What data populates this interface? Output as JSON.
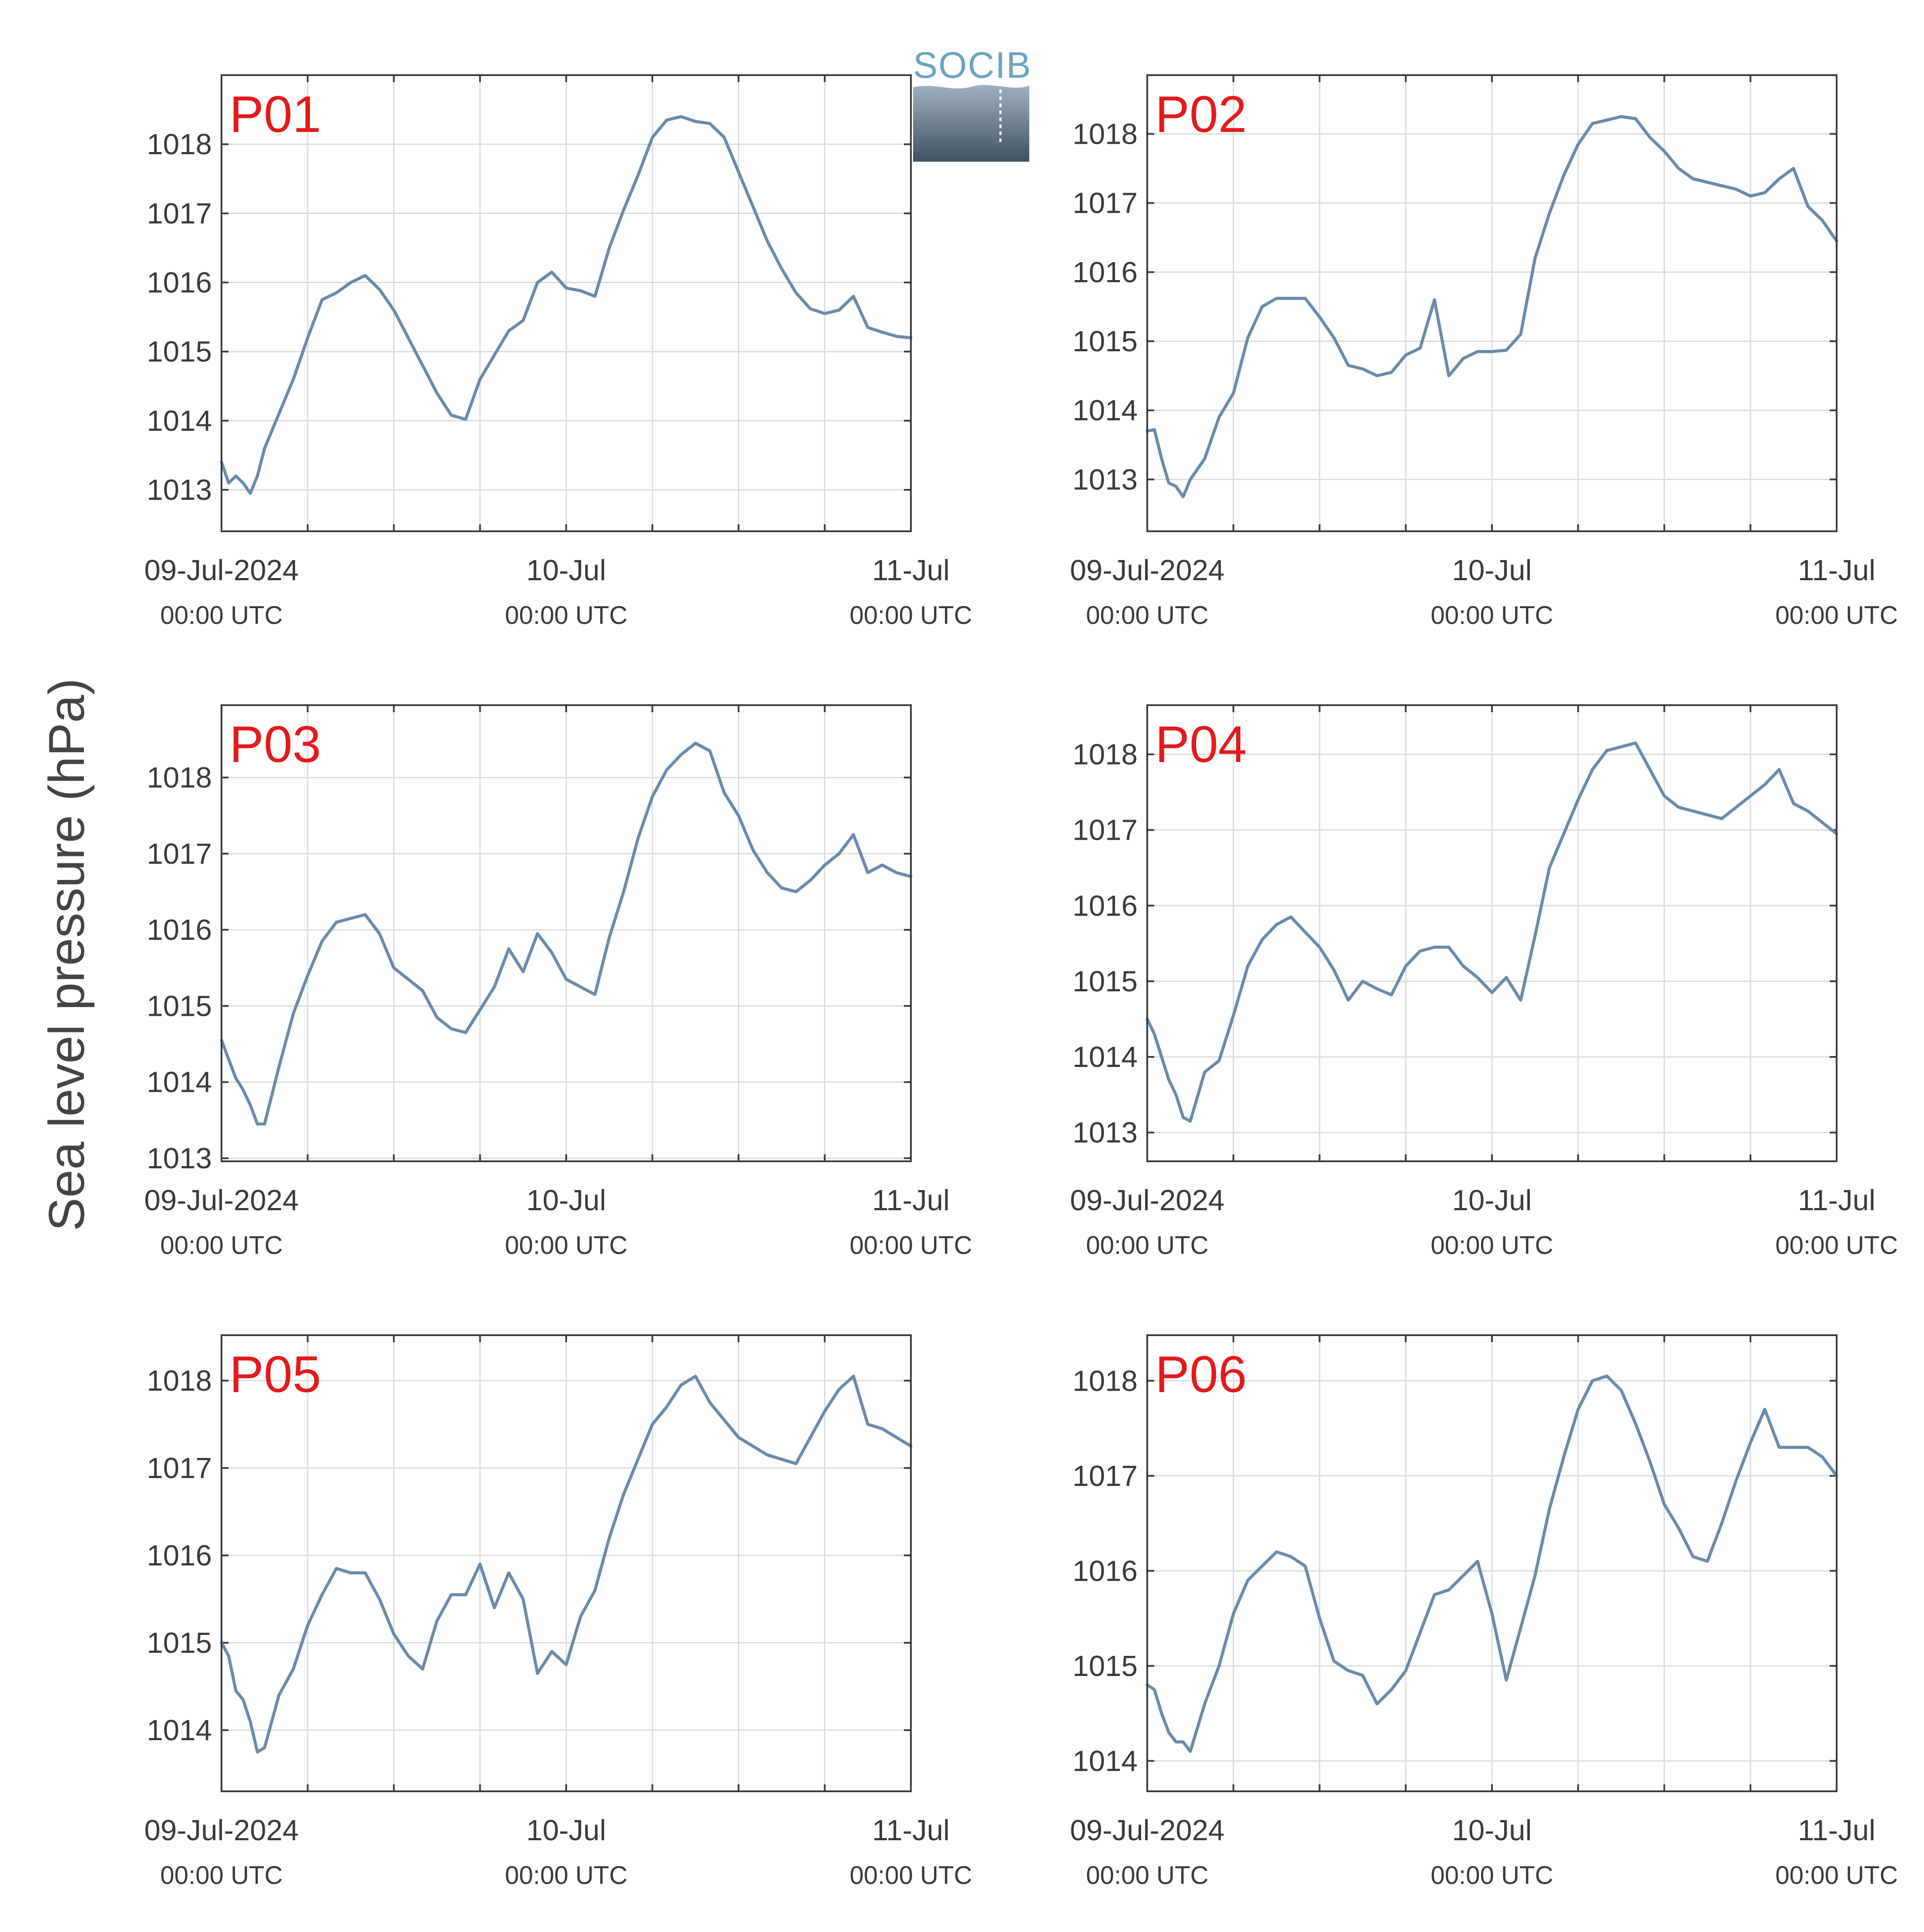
{
  "ylabel": "Sea level pressure (hPa)",
  "logo": {
    "text": "SOCIB",
    "color_top": "#9fb0c0",
    "color_bottom": "#3e5165"
  },
  "x_ticks": [
    {
      "label": "09-Jul-2024",
      "sub": "00:00 UTC"
    },
    {
      "label": "10-Jul",
      "sub": "00:00 UTC"
    },
    {
      "label": "11-Jul",
      "sub": "00:00 UTC"
    }
  ],
  "colors": {
    "series": "#6a8aaa",
    "title": "#e31a1c",
    "grid": "#dcdcdc",
    "axis": "#3a3a3a"
  },
  "chart_data": [
    {
      "type": "line",
      "title": "P01",
      "xlabel": "",
      "ylabel": "Sea level pressure (hPa)",
      "xlim": [
        0,
        48
      ],
      "ylim": [
        1012.4,
        1019.0
      ],
      "yticks": [
        1013,
        1014,
        1015,
        1016,
        1017,
        1018
      ],
      "grid": true,
      "series": [
        {
          "x": [
            0,
            0.5,
            1,
            1.5,
            2,
            2.5,
            3,
            4,
            5,
            6,
            7,
            8,
            9,
            10,
            11,
            12,
            13,
            14,
            15,
            16,
            17,
            18,
            19,
            20,
            21,
            22,
            23,
            24,
            25,
            26,
            27,
            28,
            29,
            30,
            31,
            32,
            33,
            34,
            35,
            36,
            37,
            38,
            39,
            40,
            41,
            42,
            43,
            44,
            45,
            46,
            47,
            48
          ],
          "y": [
            1013.4,
            1013.1,
            1013.2,
            1013.1,
            1012.95,
            1013.2,
            1013.6,
            1014.1,
            1014.6,
            1015.2,
            1015.75,
            1015.85,
            1016.0,
            1016.1,
            1015.9,
            1015.6,
            1015.2,
            1014.8,
            1014.4,
            1014.08,
            1014.02,
            1014.6,
            1014.95,
            1015.3,
            1015.45,
            1016.0,
            1016.15,
            1015.92,
            1015.88,
            1015.8,
            1016.5,
            1017.05,
            1017.55,
            1018.1,
            1018.35,
            1018.4,
            1018.33,
            1018.3,
            1018.1,
            1017.6,
            1017.1,
            1016.6,
            1016.2,
            1015.85,
            1015.62,
            1015.55,
            1015.6,
            1015.8,
            1015.35,
            1015.28,
            1015.22,
            1015.2
          ]
        }
      ]
    },
    {
      "type": "line",
      "title": "P02",
      "xlabel": "",
      "ylabel": "Sea level pressure (hPa)",
      "xlim": [
        0,
        48
      ],
      "ylim": [
        1012.25,
        1018.85
      ],
      "yticks": [
        1013,
        1014,
        1015,
        1016,
        1017,
        1018
      ],
      "grid": true,
      "series": [
        {
          "x": [
            0,
            0.5,
            1,
            1.5,
            2,
            2.5,
            3,
            4,
            5,
            6,
            7,
            8,
            9,
            10,
            11,
            12,
            13,
            14,
            15,
            16,
            17,
            18,
            19,
            20,
            21,
            22,
            23,
            24,
            25,
            26,
            27,
            28,
            29,
            30,
            31,
            32,
            33,
            34,
            35,
            36,
            37,
            38,
            39,
            40,
            41,
            42,
            43,
            44,
            45,
            46,
            47,
            48
          ],
          "y": [
            1013.7,
            1013.72,
            1013.3,
            1012.95,
            1012.9,
            1012.75,
            1013.0,
            1013.3,
            1013.9,
            1014.25,
            1015.05,
            1015.5,
            1015.62,
            1015.62,
            1015.62,
            1015.35,
            1015.05,
            1014.65,
            1014.6,
            1014.5,
            1014.55,
            1014.8,
            1014.9,
            1015.6,
            1014.5,
            1014.75,
            1014.85,
            1014.85,
            1014.87,
            1015.1,
            1016.2,
            1016.85,
            1017.4,
            1017.85,
            1018.15,
            1018.2,
            1018.25,
            1018.22,
            1017.95,
            1017.75,
            1017.5,
            1017.35,
            1017.3,
            1017.25,
            1017.2,
            1017.1,
            1017.15,
            1017.35,
            1017.5,
            1016.95,
            1016.75,
            1016.45
          ]
        }
      ]
    },
    {
      "type": "line",
      "title": "P03",
      "xlabel": "",
      "ylabel": "Sea level pressure (hPa)",
      "xlim": [
        0,
        48
      ],
      "ylim": [
        1012.96,
        1018.95
      ],
      "yticks": [
        1013,
        1014,
        1015,
        1016,
        1017,
        1018
      ],
      "grid": true,
      "series": [
        {
          "x": [
            0,
            0.5,
            1,
            1.5,
            2,
            2.5,
            3,
            4,
            5,
            6,
            7,
            8,
            9,
            10,
            11,
            12,
            13,
            14,
            15,
            16,
            17,
            18,
            19,
            20,
            21,
            22,
            23,
            24,
            25,
            26,
            27,
            28,
            29,
            30,
            31,
            32,
            33,
            34,
            35,
            36,
            37,
            38,
            39,
            40,
            41,
            42,
            43,
            44,
            45,
            46,
            47,
            48
          ],
          "y": [
            1014.55,
            1014.3,
            1014.05,
            1013.9,
            1013.7,
            1013.45,
            1013.45,
            1014.2,
            1014.9,
            1015.4,
            1015.85,
            1016.1,
            1016.15,
            1016.2,
            1015.95,
            1015.5,
            1015.35,
            1015.2,
            1014.85,
            1014.7,
            1014.65,
            1014.95,
            1015.25,
            1015.75,
            1015.45,
            1015.95,
            1015.7,
            1015.35,
            1015.25,
            1015.15,
            1015.9,
            1016.5,
            1017.2,
            1017.75,
            1018.1,
            1018.3,
            1018.45,
            1018.35,
            1017.8,
            1017.5,
            1017.05,
            1016.75,
            1016.55,
            1016.5,
            1016.65,
            1016.85,
            1017.0,
            1017.25,
            1016.75,
            1016.85,
            1016.75,
            1016.7
          ]
        }
      ]
    },
    {
      "type": "line",
      "title": "P04",
      "xlabel": "",
      "ylabel": "Sea level pressure (hPa)",
      "xlim": [
        0,
        48
      ],
      "ylim": [
        1012.62,
        1018.65
      ],
      "yticks": [
        1013,
        1014,
        1015,
        1016,
        1017,
        1018
      ],
      "grid": true,
      "series": [
        {
          "x": [
            0,
            0.5,
            1,
            1.5,
            2,
            2.5,
            3,
            4,
            5,
            6,
            7,
            8,
            9,
            10,
            11,
            12,
            13,
            14,
            15,
            16,
            17,
            18,
            19,
            20,
            21,
            22,
            23,
            24,
            25,
            26,
            27,
            28,
            29,
            30,
            31,
            32,
            33,
            34,
            35,
            36,
            37,
            38,
            39,
            40,
            41,
            42,
            43,
            44,
            45,
            46,
            47,
            48
          ],
          "y": [
            1014.5,
            1014.3,
            1014.0,
            1013.7,
            1013.5,
            1013.2,
            1013.15,
            1013.8,
            1013.95,
            1014.55,
            1015.2,
            1015.55,
            1015.75,
            1015.85,
            1015.65,
            1015.45,
            1015.15,
            1014.75,
            1015.0,
            1014.9,
            1014.82,
            1015.2,
            1015.4,
            1015.45,
            1015.45,
            1015.2,
            1015.05,
            1014.85,
            1015.05,
            1014.75,
            1015.6,
            1016.5,
            1016.95,
            1017.4,
            1017.8,
            1018.05,
            1018.1,
            1018.15,
            1017.8,
            1017.45,
            1017.3,
            1017.25,
            1017.2,
            1017.15,
            1017.3,
            1017.45,
            1017.6,
            1017.8,
            1017.35,
            1017.25,
            1017.1,
            1016.95
          ]
        }
      ]
    },
    {
      "type": "line",
      "title": "P05",
      "xlabel": "",
      "ylabel": "Sea level pressure (hPa)",
      "xlim": [
        0,
        48
      ],
      "ylim": [
        1013.3,
        1018.52
      ],
      "yticks": [
        1014,
        1015,
        1016,
        1017,
        1018
      ],
      "grid": true,
      "series": [
        {
          "x": [
            0,
            0.5,
            1,
            1.5,
            2,
            2.5,
            3,
            4,
            5,
            6,
            7,
            8,
            9,
            10,
            11,
            12,
            13,
            14,
            15,
            16,
            17,
            18,
            19,
            20,
            21,
            22,
            23,
            24,
            25,
            26,
            27,
            28,
            29,
            30,
            31,
            32,
            33,
            34,
            35,
            36,
            37,
            38,
            39,
            40,
            41,
            42,
            43,
            44,
            45,
            46,
            47,
            48
          ],
          "y": [
            1015.0,
            1014.85,
            1014.45,
            1014.35,
            1014.1,
            1013.75,
            1013.8,
            1014.4,
            1014.7,
            1015.2,
            1015.55,
            1015.85,
            1015.8,
            1015.8,
            1015.5,
            1015.1,
            1014.85,
            1014.7,
            1015.25,
            1015.55,
            1015.55,
            1015.9,
            1015.4,
            1015.8,
            1015.5,
            1014.65,
            1014.9,
            1014.75,
            1015.3,
            1015.6,
            1016.2,
            1016.7,
            1017.1,
            1017.5,
            1017.7,
            1017.95,
            1018.05,
            1017.75,
            1017.55,
            1017.35,
            1017.25,
            1017.15,
            1017.1,
            1017.05,
            1017.35,
            1017.65,
            1017.9,
            1018.05,
            1017.5,
            1017.45,
            1017.35,
            1017.25
          ]
        }
      ]
    },
    {
      "type": "line",
      "title": "P06",
      "xlabel": "",
      "ylabel": "Sea level pressure (hPa)",
      "xlim": [
        0,
        48
      ],
      "ylim": [
        1013.68,
        1018.48
      ],
      "yticks": [
        1014,
        1015,
        1016,
        1017,
        1018
      ],
      "grid": true,
      "series": [
        {
          "x": [
            0,
            0.5,
            1,
            1.5,
            2,
            2.5,
            3,
            4,
            5,
            6,
            7,
            8,
            9,
            10,
            11,
            12,
            13,
            14,
            15,
            16,
            17,
            18,
            19,
            20,
            21,
            22,
            23,
            24,
            25,
            26,
            27,
            28,
            29,
            30,
            31,
            32,
            33,
            34,
            35,
            36,
            37,
            38,
            39,
            40,
            41,
            42,
            43,
            44,
            45,
            46,
            47,
            48
          ],
          "y": [
            1014.8,
            1014.75,
            1014.5,
            1014.3,
            1014.2,
            1014.2,
            1014.1,
            1014.6,
            1015.0,
            1015.55,
            1015.9,
            1016.05,
            1016.2,
            1016.15,
            1016.05,
            1015.5,
            1015.05,
            1014.95,
            1014.9,
            1014.6,
            1014.75,
            1014.95,
            1015.35,
            1015.75,
            1015.8,
            1015.95,
            1016.1,
            1015.55,
            1014.85,
            1015.4,
            1015.95,
            1016.65,
            1017.2,
            1017.7,
            1018.0,
            1018.05,
            1017.9,
            1017.55,
            1017.15,
            1016.7,
            1016.45,
            1016.15,
            1016.1,
            1016.5,
            1016.95,
            1017.35,
            1017.7,
            1017.3,
            1017.3,
            1017.3,
            1017.2,
            1017.0
          ]
        }
      ]
    }
  ]
}
